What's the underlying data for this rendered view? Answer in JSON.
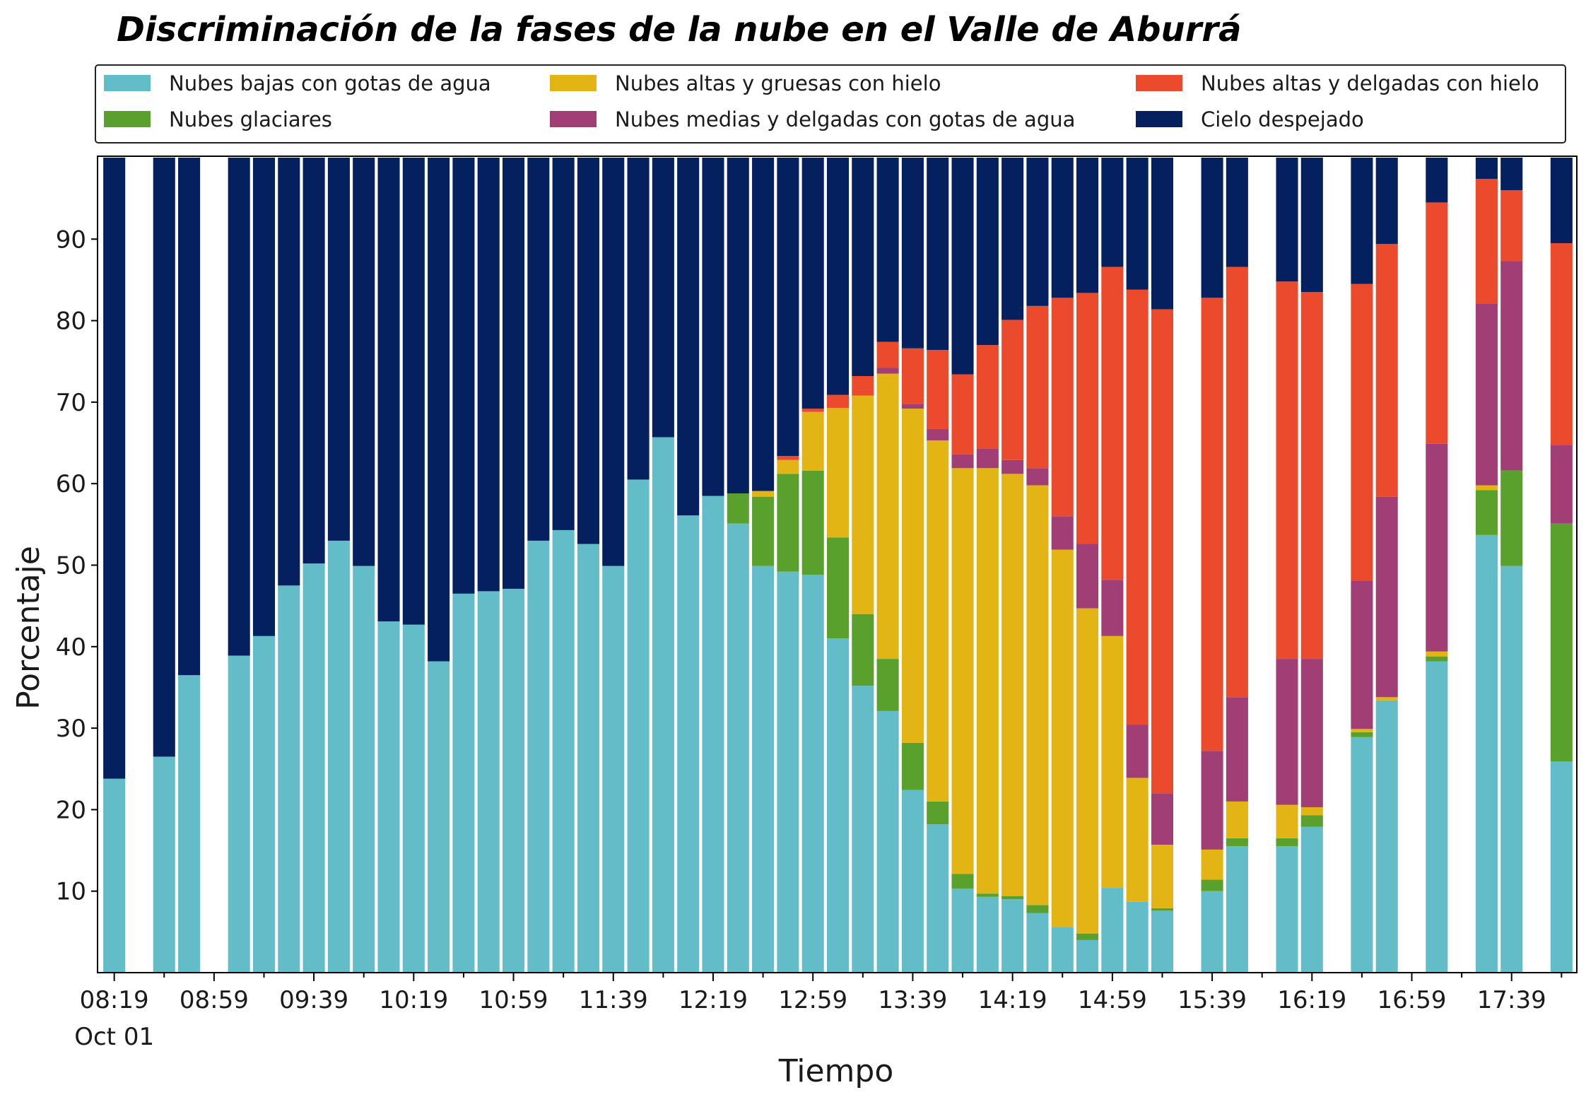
{
  "chart_data": {
    "type": "bar",
    "stacked": true,
    "title": "Discriminación de la fases de la nube en el Valle de Aburrá",
    "xlabel": "Tiempo",
    "ylabel": "Porcentaje",
    "ylim": [
      0,
      100
    ],
    "yticks": [
      10,
      20,
      30,
      40,
      50,
      60,
      70,
      80,
      90
    ],
    "legend_position": "top",
    "x_tick_labels": [
      "08:19",
      "08:59",
      "09:39",
      "10:19",
      "10:59",
      "11:39",
      "12:19",
      "12:59",
      "13:39",
      "14:19",
      "14:59",
      "15:39",
      "16:19",
      "16:59",
      "17:39"
    ],
    "x_tick_sub_label": "Oct 01",
    "x_start": "08:19",
    "interval_minutes": 10,
    "series": [
      {
        "name": "Nubes bajas con gotas de agua",
        "color": "#63BDC9",
        "values": [
          23.8,
          null,
          26.5,
          36.5,
          null,
          38.9,
          41.3,
          47.5,
          50.2,
          53.0,
          49.9,
          43.1,
          42.7,
          38.2,
          46.5,
          46.8,
          47.1,
          53.0,
          54.3,
          52.6,
          49.9,
          60.5,
          65.7,
          56.1,
          58.5,
          55.1,
          49.9,
          49.2,
          48.8,
          41.0,
          35.2,
          32.1,
          22.4,
          18.2,
          10.3,
          9.3,
          9.0,
          7.3,
          5.6,
          4.0,
          10.4,
          8.7,
          7.6,
          null,
          10.0,
          15.5,
          null,
          15.5,
          17.9,
          null,
          28.9,
          33.4,
          null,
          38.2,
          null,
          53.7,
          49.9,
          null,
          25.9
        ]
      },
      {
        "name": "Nubes glaciares",
        "color": "#5AA02C",
        "values": [
          0,
          null,
          0,
          0,
          null,
          0,
          0,
          0,
          0,
          0,
          0,
          0,
          0,
          0,
          0,
          0,
          0,
          0,
          0,
          0,
          0,
          0,
          0,
          0,
          0,
          3.7,
          8.5,
          12.0,
          12.8,
          12.4,
          8.8,
          6.4,
          5.8,
          2.8,
          1.8,
          0.4,
          0.4,
          1.0,
          0,
          0.8,
          0,
          0,
          0.3,
          null,
          1.4,
          1.0,
          null,
          1.0,
          1.4,
          null,
          0.6,
          0,
          null,
          0.6,
          null,
          5.5,
          11.7,
          null,
          29.2
        ]
      },
      {
        "name": "Nubes altas y gruesas con hielo",
        "color": "#E3B514",
        "values": [
          0,
          null,
          0,
          0,
          null,
          0,
          0,
          0,
          0,
          0,
          0,
          0,
          0,
          0,
          0,
          0,
          0,
          0,
          0,
          0,
          0,
          0,
          0,
          0,
          0,
          0,
          0.7,
          1.7,
          7.2,
          15.9,
          26.8,
          35.0,
          41.0,
          44.3,
          49.8,
          52.2,
          51.8,
          51.5,
          46.3,
          39.9,
          30.9,
          15.2,
          7.8,
          null,
          3.7,
          4.5,
          null,
          4.1,
          1.0,
          null,
          0.4,
          0.4,
          null,
          0.6,
          null,
          0.6,
          0,
          null,
          0
        ]
      },
      {
        "name": "Nubes medias y delgadas con gotas de agua",
        "color": "#A13E76",
        "values": [
          0,
          null,
          0,
          0,
          null,
          0,
          0,
          0,
          0,
          0,
          0,
          0,
          0,
          0,
          0,
          0,
          0,
          0,
          0,
          0,
          0,
          0,
          0,
          0,
          0,
          0,
          0,
          0,
          0,
          0,
          0,
          0.7,
          0.6,
          1.4,
          1.7,
          2.4,
          1.7,
          2.1,
          4.1,
          7.9,
          6.9,
          6.5,
          6.3,
          null,
          12.1,
          12.8,
          null,
          17.9,
          18.2,
          null,
          18.2,
          24.6,
          null,
          25.5,
          null,
          22.3,
          25.7,
          null,
          9.6
        ]
      },
      {
        "name": "Nubes altas y delgadas con hielo",
        "color": "#EB4A2C",
        "values": [
          0,
          null,
          0,
          0,
          null,
          0,
          0,
          0,
          0,
          0,
          0,
          0,
          0,
          0,
          0,
          0,
          0,
          0,
          0,
          0,
          0,
          0,
          0,
          0,
          0,
          0,
          0,
          0.5,
          0.4,
          1.6,
          2.4,
          3.2,
          6.8,
          9.7,
          9.8,
          12.7,
          17.2,
          19.9,
          26.8,
          30.8,
          38.4,
          53.4,
          59.4,
          null,
          55.6,
          52.8,
          null,
          46.3,
          45.0,
          null,
          36.4,
          31.0,
          null,
          29.6,
          null,
          15.3,
          8.7,
          null,
          24.8
        ]
      },
      {
        "name": "Cielo despejado",
        "color": "#04205E",
        "values": [
          76.2,
          null,
          73.5,
          63.5,
          null,
          61.1,
          58.7,
          52.5,
          49.8,
          47.0,
          50.1,
          56.9,
          57.3,
          61.8,
          53.5,
          53.2,
          52.9,
          47.0,
          45.7,
          47.4,
          50.1,
          39.5,
          34.3,
          43.9,
          41.5,
          41.2,
          40.9,
          36.6,
          30.8,
          29.1,
          26.8,
          22.6,
          23.4,
          23.6,
          26.6,
          23.0,
          19.9,
          18.2,
          17.2,
          16.6,
          13.4,
          16.2,
          18.6,
          null,
          17.2,
          13.4,
          null,
          15.2,
          16.5,
          null,
          15.5,
          10.6,
          null,
          5.5,
          null,
          2.6,
          4.0,
          null,
          10.5
        ]
      }
    ]
  },
  "legend": {
    "columns": [
      [
        "Nubes bajas con gotas de agua",
        "Nubes glaciares"
      ],
      [
        "Nubes altas y gruesas con hielo",
        "Nubes medias y delgadas con gotas de agua"
      ],
      [
        "Nubes altas y delgadas con hielo",
        "Cielo despejado"
      ]
    ]
  }
}
